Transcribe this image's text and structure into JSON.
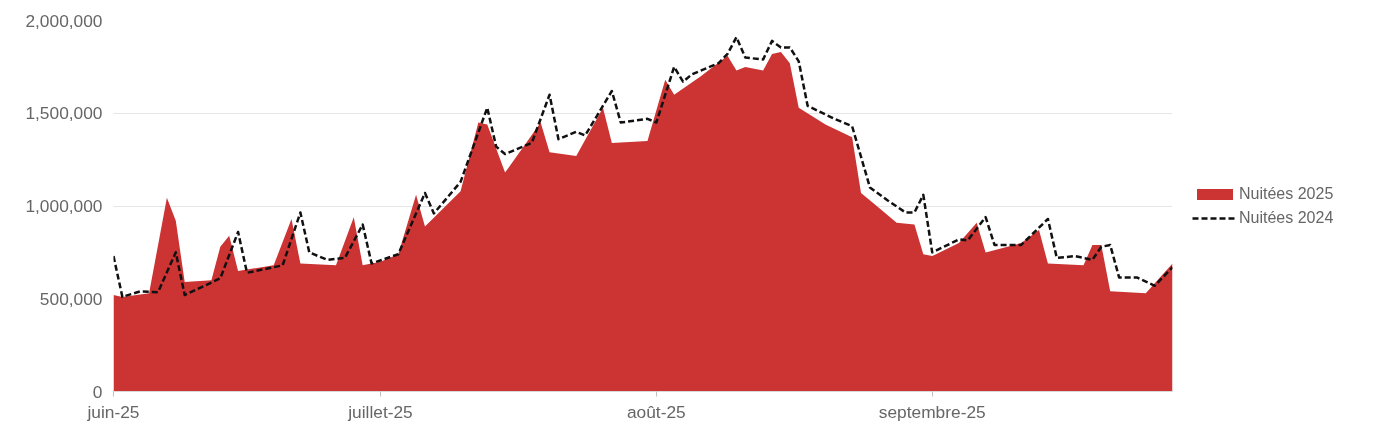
{
  "chart_data": {
    "type": "area",
    "xlim": [
      "2025-06-01",
      "2025-09-28"
    ],
    "xticks": [
      {
        "value": "2025-06-01",
        "label": "juin-25"
      },
      {
        "value": "2025-07-01",
        "label": "juillet-25"
      },
      {
        "value": "2025-08-01",
        "label": "août-25"
      },
      {
        "value": "2025-09-01",
        "label": "septembre-25"
      }
    ],
    "ylim": [
      0,
      2000000
    ],
    "yticks": [
      {
        "value": 0,
        "label": "0"
      },
      {
        "value": 500000,
        "label": "500,000"
      },
      {
        "value": 1000000,
        "label": "1,000,000"
      },
      {
        "value": 1500000,
        "label": "1,500,000"
      },
      {
        "value": 2000000,
        "label": "2,000,000"
      }
    ],
    "grid": "y",
    "legend": "right",
    "series": [
      {
        "name": "Nuitées 2025",
        "type": "area",
        "color": "#cc3333",
        "x": [
          "2025-06-01",
          "2025-06-02",
          "2025-06-05",
          "2025-06-07",
          "2025-06-08",
          "2025-06-09",
          "2025-06-12",
          "2025-06-13",
          "2025-06-14",
          "2025-06-15",
          "2025-06-19",
          "2025-06-21",
          "2025-06-22",
          "2025-06-26",
          "2025-06-28",
          "2025-06-29",
          "2025-07-01",
          "2025-07-03",
          "2025-07-05",
          "2025-07-06",
          "2025-07-10",
          "2025-07-12",
          "2025-07-13",
          "2025-07-15",
          "2025-07-19",
          "2025-07-20",
          "2025-07-23",
          "2025-07-26",
          "2025-07-27",
          "2025-07-31",
          "2025-08-02",
          "2025-08-03",
          "2025-08-06",
          "2025-08-09",
          "2025-08-10",
          "2025-08-11",
          "2025-08-13",
          "2025-08-14",
          "2025-08-15",
          "2025-08-16",
          "2025-08-17",
          "2025-08-20",
          "2025-08-23",
          "2025-08-24",
          "2025-08-26",
          "2025-08-28",
          "2025-08-30",
          "2025-08-31",
          "2025-09-01",
          "2025-09-04",
          "2025-09-06",
          "2025-09-07",
          "2025-09-11",
          "2025-09-13",
          "2025-09-14",
          "2025-09-18",
          "2025-09-19",
          "2025-09-20",
          "2025-09-21",
          "2025-09-25",
          "2025-09-28"
        ],
        "values": [
          520000,
          510000,
          530000,
          1045000,
          920000,
          590000,
          600000,
          780000,
          840000,
          650000,
          680000,
          930000,
          690000,
          680000,
          940000,
          680000,
          700000,
          740000,
          1060000,
          890000,
          1080000,
          1450000,
          1440000,
          1180000,
          1450000,
          1290000,
          1270000,
          1530000,
          1340000,
          1350000,
          1680000,
          1600000,
          1700000,
          1810000,
          1730000,
          1750000,
          1730000,
          1820000,
          1830000,
          1770000,
          1530000,
          1440000,
          1370000,
          1070000,
          990000,
          910000,
          900000,
          740000,
          730000,
          800000,
          910000,
          750000,
          800000,
          870000,
          690000,
          680000,
          790000,
          790000,
          540000,
          530000,
          690000
        ]
      },
      {
        "name": "Nuitées 2024",
        "type": "line",
        "line_style": "dashed",
        "color": "#111111",
        "x": [
          "2025-06-01",
          "2025-06-02",
          "2025-06-04",
          "2025-06-06",
          "2025-06-08",
          "2025-06-09",
          "2025-06-13",
          "2025-06-15",
          "2025-06-16",
          "2025-06-20",
          "2025-06-22",
          "2025-06-23",
          "2025-06-25",
          "2025-06-27",
          "2025-06-29",
          "2025-06-30",
          "2025-07-03",
          "2025-07-06",
          "2025-07-07",
          "2025-07-10",
          "2025-07-13",
          "2025-07-14",
          "2025-07-15",
          "2025-07-18",
          "2025-07-20",
          "2025-07-21",
          "2025-07-23",
          "2025-07-24",
          "2025-07-27",
          "2025-07-28",
          "2025-07-31",
          "2025-08-01",
          "2025-08-03",
          "2025-08-04",
          "2025-08-05",
          "2025-08-08",
          "2025-08-09",
          "2025-08-10",
          "2025-08-11",
          "2025-08-13",
          "2025-08-14",
          "2025-08-15",
          "2025-08-16",
          "2025-08-17",
          "2025-08-18",
          "2025-08-21",
          "2025-08-23",
          "2025-08-25",
          "2025-08-27",
          "2025-08-29",
          "2025-08-30",
          "2025-08-31",
          "2025-09-01",
          "2025-09-04",
          "2025-09-05",
          "2025-09-07",
          "2025-09-08",
          "2025-09-11",
          "2025-09-14",
          "2025-09-15",
          "2025-09-17",
          "2025-09-19",
          "2025-09-20",
          "2025-09-21",
          "2025-09-22",
          "2025-09-24",
          "2025-09-26",
          "2025-09-28"
        ],
        "values": [
          730000,
          510000,
          540000,
          535000,
          750000,
          520000,
          610000,
          860000,
          640000,
          680000,
          965000,
          750000,
          710000,
          720000,
          900000,
          690000,
          740000,
          1070000,
          960000,
          1130000,
          1530000,
          1320000,
          1280000,
          1340000,
          1600000,
          1360000,
          1400000,
          1380000,
          1620000,
          1450000,
          1470000,
          1450000,
          1750000,
          1670000,
          1710000,
          1770000,
          1820000,
          1910000,
          1800000,
          1790000,
          1890000,
          1855000,
          1855000,
          1780000,
          1540000,
          1470000,
          1430000,
          1100000,
          1030000,
          965000,
          965000,
          1060000,
          750000,
          820000,
          815000,
          940000,
          790000,
          790000,
          930000,
          720000,
          730000,
          710000,
          780000,
          790000,
          615000,
          615000,
          570000,
          670000
        ]
      }
    ]
  }
}
